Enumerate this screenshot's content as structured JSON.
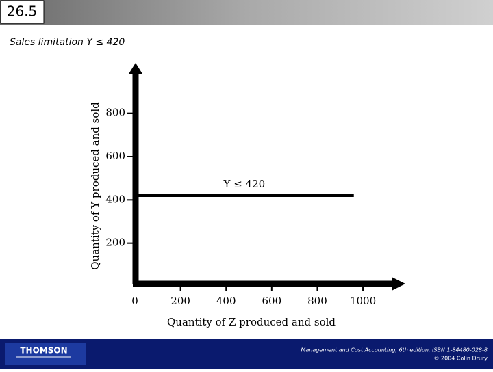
{
  "slide": {
    "number": "26.5",
    "subtitle": "Sales limitation Y ≤ 420",
    "logo": "THOMSON",
    "footer": [
      "Management and Cost Accounting, 6th edition, ISBN 1-84480-028-8",
      "© 2004 Colin Drury"
    ]
  },
  "chart_data": {
    "type": "line",
    "xlabel": "Quantity of Z produced and sold",
    "ylabel": "Quantity of Y produced and sold",
    "annotation": "Y ≤ 420",
    "x": [
      0,
      960
    ],
    "series": [
      {
        "name": "Y ≤ 420",
        "color": "#000000",
        "values": [
          420,
          420
        ]
      }
    ],
    "xlim": [
      0,
      1180
    ],
    "xticks": [
      0,
      200,
      400,
      600,
      800,
      1000
    ],
    "ylim": [
      0,
      1020
    ],
    "yticks": [
      200,
      400,
      600,
      800
    ]
  }
}
